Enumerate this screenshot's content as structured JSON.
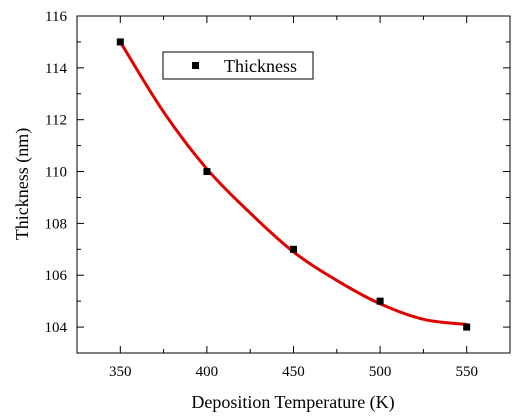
{
  "chart_data": {
    "type": "scatter",
    "xlabel": "Deposition Temperature (K)",
    "ylabel": "Thickness (nm)",
    "xlim": [
      325,
      575
    ],
    "ylim": [
      103,
      116
    ],
    "x_ticks": [
      350,
      400,
      450,
      500,
      550
    ],
    "y_ticks": [
      104,
      106,
      108,
      110,
      112,
      114,
      116
    ],
    "grid": false,
    "legend": {
      "position": "top-center",
      "entries": [
        "Thickness"
      ]
    },
    "series": [
      {
        "name": "Thickness",
        "marker": "square",
        "color": "#000000",
        "x": [
          350,
          400,
          450,
          500,
          550
        ],
        "y": [
          115,
          110,
          107,
          105,
          104
        ]
      }
    ],
    "fit_curve": {
      "color": "#e00000",
      "x": [
        350,
        375,
        400,
        425,
        450,
        475,
        500,
        525,
        550
      ],
      "y": [
        115.0,
        112.3,
        110.1,
        108.4,
        106.9,
        105.8,
        104.9,
        104.3,
        104.1
      ]
    }
  }
}
